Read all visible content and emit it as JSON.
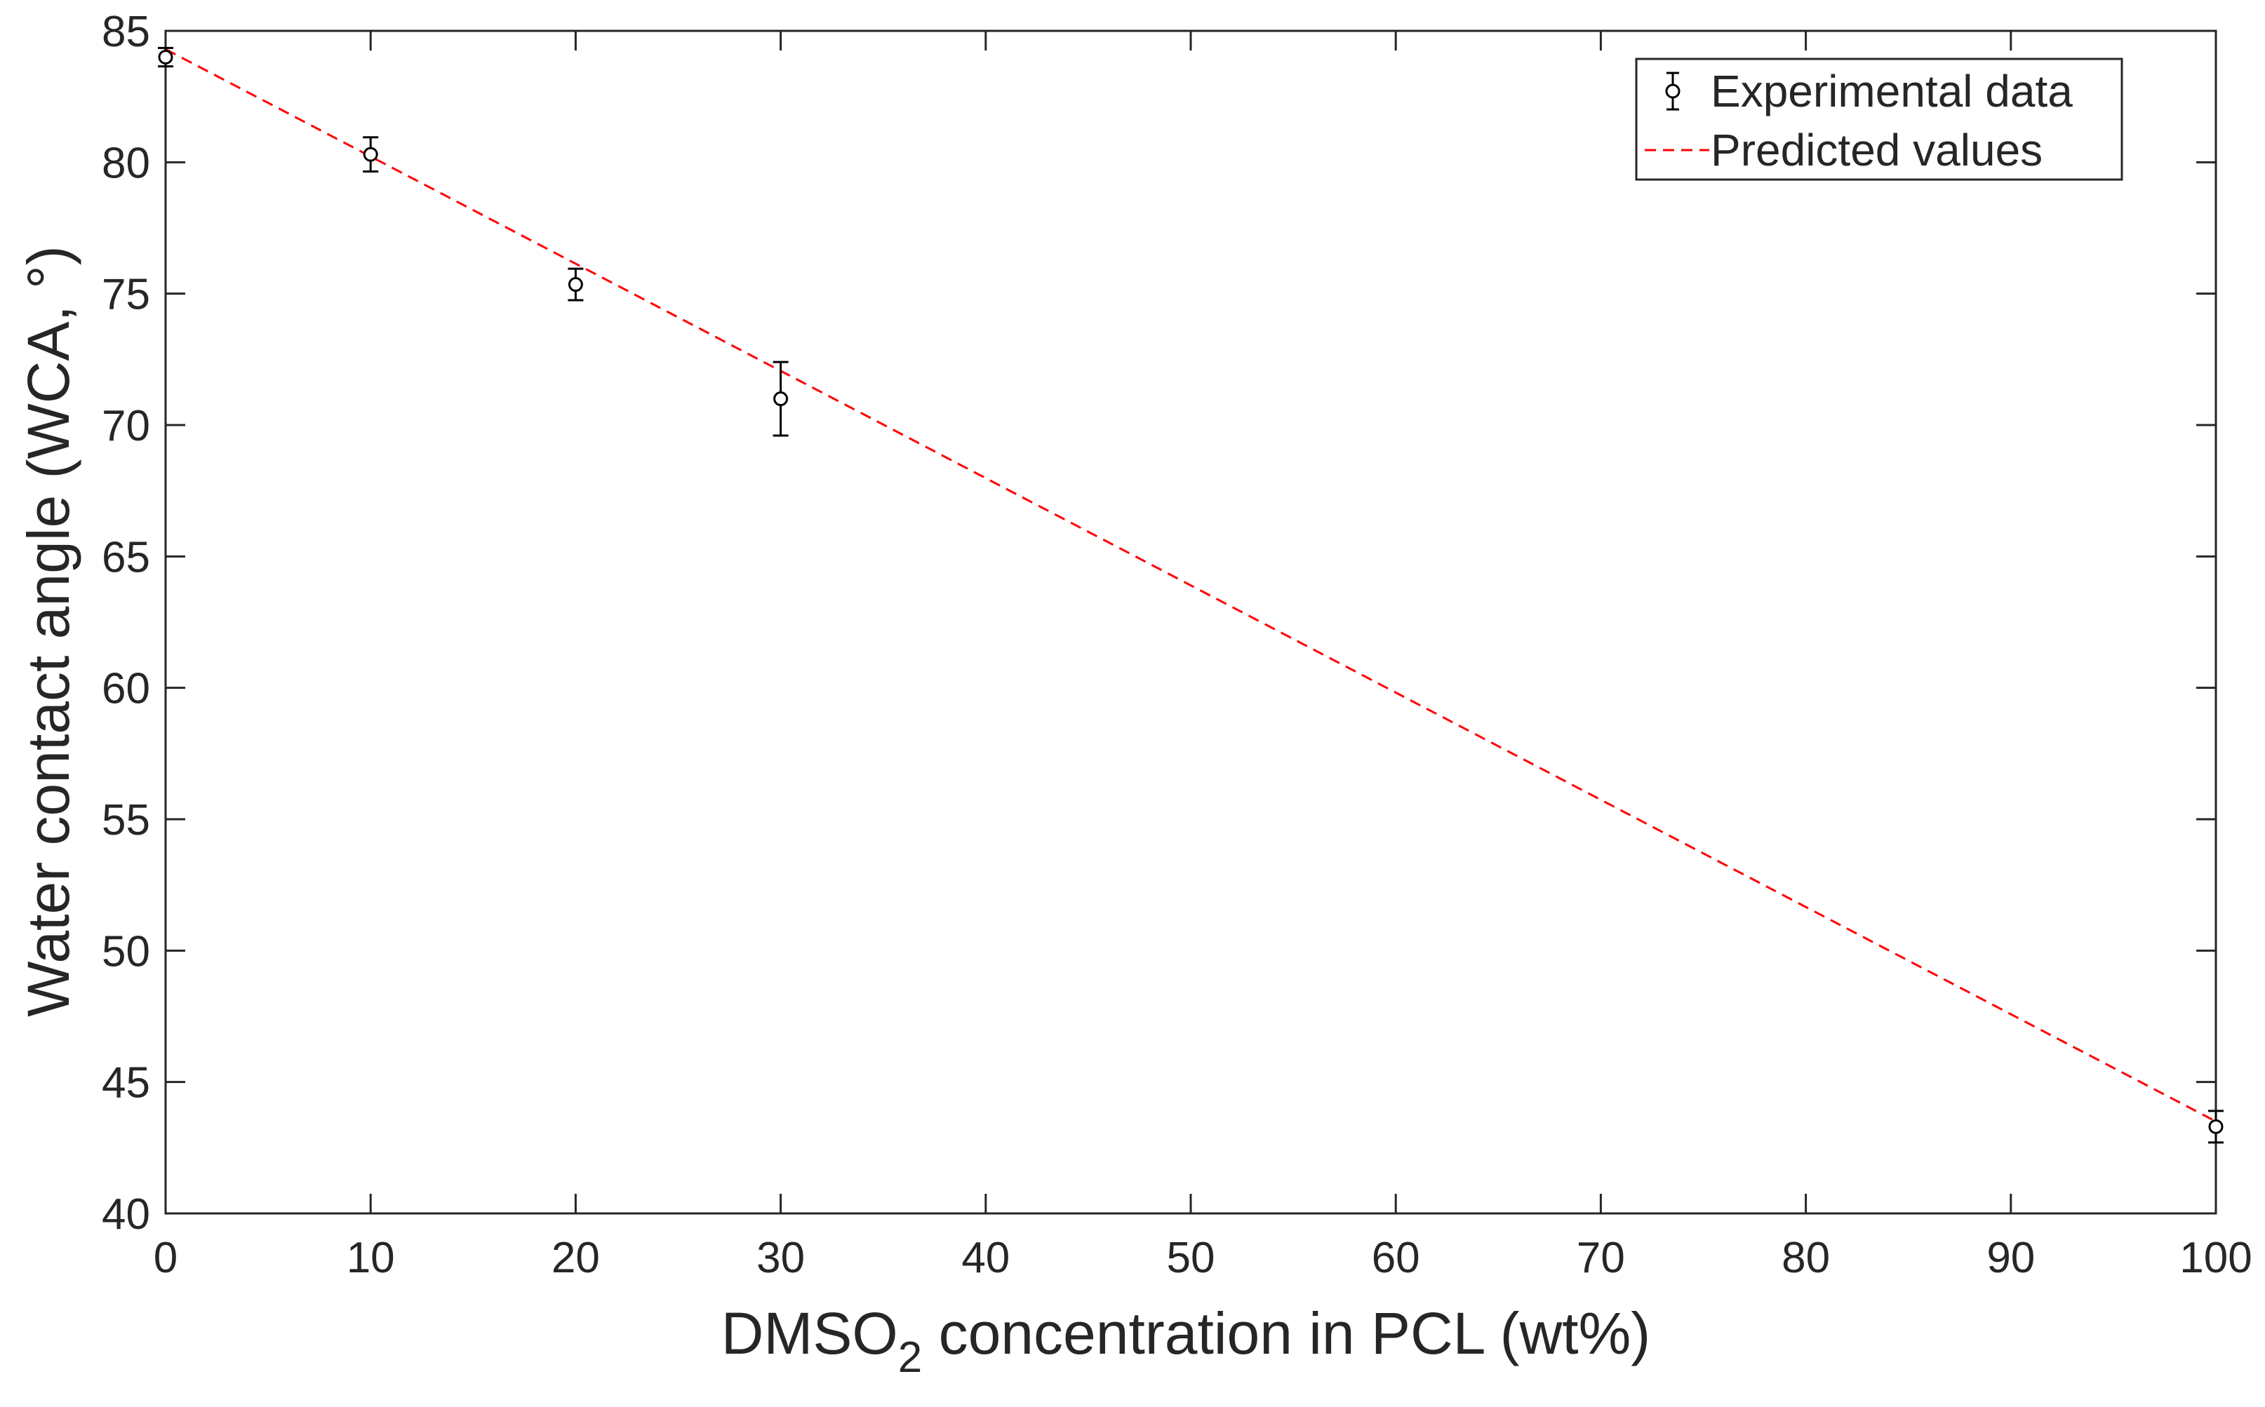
{
  "chart_data": {
    "type": "scatter",
    "title": "",
    "xlabel_main": "DMSO",
    "xlabel_sub": "2",
    "xlabel_rest": " concentration in PCL (wt%)",
    "ylabel": "Water contact angle (WCA, °)",
    "xlim": [
      0,
      100
    ],
    "ylim": [
      40,
      85
    ],
    "xticks": [
      0,
      10,
      20,
      30,
      40,
      50,
      60,
      70,
      80,
      90,
      100
    ],
    "yticks": [
      40,
      45,
      50,
      55,
      60,
      65,
      70,
      75,
      80,
      85
    ],
    "grid": false,
    "legend_position": "top-right",
    "series": [
      {
        "name": "Experimental data",
        "kind": "errorbar",
        "marker": "circle",
        "color": "#000000",
        "x": [
          0,
          10,
          20,
          30,
          100
        ],
        "y": [
          84.0,
          80.3,
          75.35,
          71.0,
          43.3
        ],
        "err": [
          0.35,
          0.65,
          0.6,
          1.4,
          0.6
        ]
      },
      {
        "name": "Predicted values",
        "kind": "line",
        "style": "dashed",
        "color": "#ff0000",
        "x": [
          0,
          100
        ],
        "y": [
          84.3,
          43.5
        ]
      }
    ]
  }
}
